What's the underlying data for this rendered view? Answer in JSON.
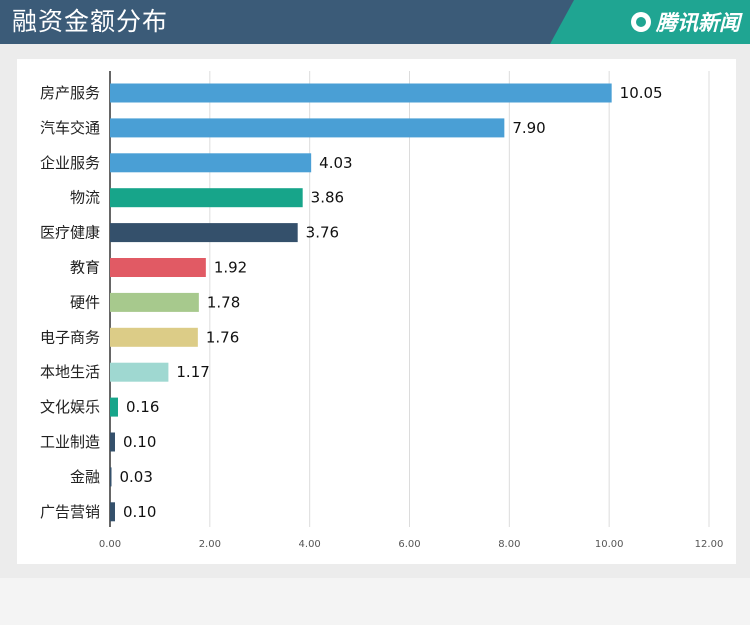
{
  "header": {
    "title": "融资金额分布",
    "brand": "腾讯新闻",
    "colors": {
      "bar": "#3b5b78",
      "accent": "#1fa592"
    }
  },
  "chart_data": {
    "type": "bar",
    "orientation": "horizontal",
    "title": "融资金额分布",
    "categories": [
      "房产服务",
      "汽车交通",
      "企业服务",
      "物流",
      "医疗健康",
      "教育",
      "硬件",
      "电子商务",
      "本地生活",
      "文化娱乐",
      "工业制造",
      "金融",
      "广告营销"
    ],
    "values": [
      10.05,
      7.9,
      4.03,
      3.86,
      3.76,
      1.92,
      1.78,
      1.76,
      1.17,
      0.16,
      0.1,
      0.03,
      0.1
    ],
    "value_labels": [
      "10.05",
      "7.90",
      "4.03",
      "3.86",
      "3.76",
      "1.92",
      "1.78",
      "1.76",
      "1.17",
      "0.16",
      "0.10",
      "0.03",
      "0.10"
    ],
    "colors": [
      "#4a9fd5",
      "#4a9fd5",
      "#4a9fd5",
      "#17a58a",
      "#34506b",
      "#e15a64",
      "#a7c98d",
      "#dccc87",
      "#9fd8d1",
      "#17a58a",
      "#34506b",
      "#34506b",
      "#34506b"
    ],
    "xlim": [
      0,
      12
    ],
    "xticks": [
      "0.00",
      "2.00",
      "4.00",
      "6.00",
      "8.00",
      "10.00",
      "12.00"
    ],
    "grid": true
  }
}
